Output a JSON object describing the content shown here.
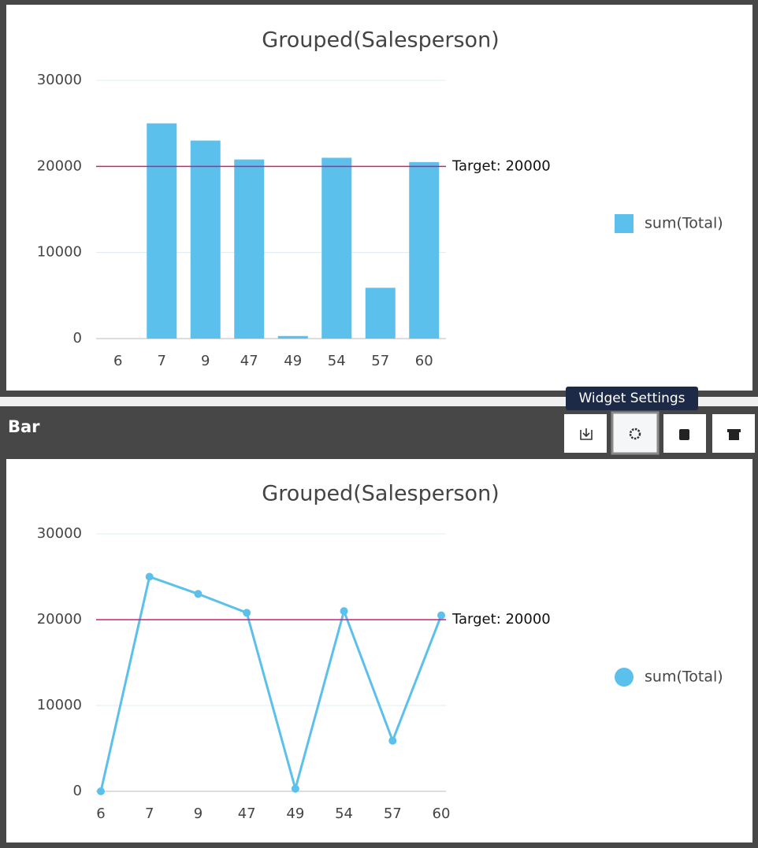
{
  "widget": {
    "title": "Bar",
    "tooltip": "Widget Settings"
  },
  "chart_data": [
    {
      "type": "bar",
      "title": "Grouped(Salesperson)",
      "categories": [
        "6",
        "7",
        "9",
        "47",
        "49",
        "54",
        "57",
        "60"
      ],
      "series": [
        {
          "name": "sum(Total)",
          "color": "#5bc0eb",
          "values": [
            0,
            25000,
            23000,
            20800,
            300,
            21000,
            5900,
            20500
          ]
        }
      ],
      "ylim": [
        0,
        30000
      ],
      "yticks": [
        0,
        10000,
        20000,
        30000
      ],
      "grid": true,
      "legend": "right",
      "target": {
        "value": 20000,
        "label": "Target: 20000",
        "color": "#c2257e"
      }
    },
    {
      "type": "line",
      "title": "Grouped(Salesperson)",
      "categories": [
        "6",
        "7",
        "9",
        "47",
        "49",
        "54",
        "57",
        "60"
      ],
      "series": [
        {
          "name": "sum(Total)",
          "color": "#5bc0eb",
          "values": [
            0,
            25000,
            23000,
            20800,
            300,
            21000,
            5900,
            20500
          ]
        }
      ],
      "ylim": [
        0,
        30000
      ],
      "yticks": [
        0,
        10000,
        20000,
        30000
      ],
      "grid": true,
      "legend": "right",
      "target": {
        "value": 20000,
        "label": "Target: 20000",
        "color": "#c2257e"
      }
    }
  ]
}
